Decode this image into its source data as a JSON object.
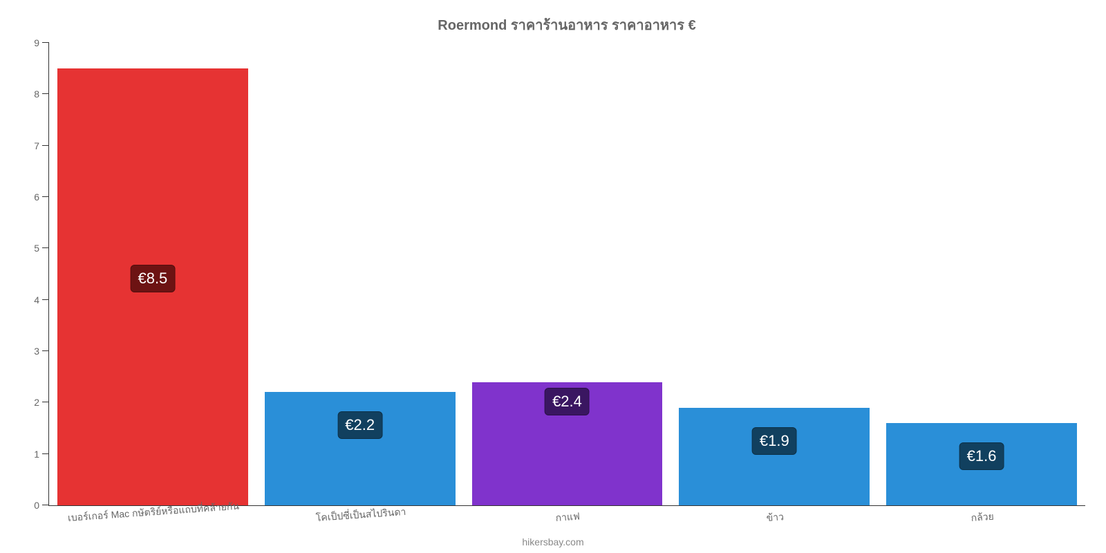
{
  "chart": {
    "type": "bar",
    "title": "Roermond ราคาร้านอาหาร ราคาอาหาร €",
    "title_fontsize": 20,
    "title_color": "#666666",
    "background_color": "#ffffff",
    "ylim": [
      0,
      9
    ],
    "yticks": [
      0,
      1,
      2,
      3,
      4,
      5,
      6,
      7,
      8,
      9
    ],
    "ytick_fontsize": 14,
    "ytick_color": "#666666",
    "xlabel_fontsize": 14,
    "xlabel_color": "#666666",
    "xlabel_rotation_deg": -4,
    "bar_width_pct": 92,
    "value_label_fontsize": 22,
    "value_label_text_color": "#ffffff",
    "categories": [
      "เบอร์เกอร์ Mac กษัตริย์หรือแถบที่คล้ายกัน",
      "โคเป็ปซี่เป็นสไปรินดา",
      "กาแฟ",
      "ข้าว",
      "กล้วย"
    ],
    "values": [
      8.5,
      2.2,
      2.4,
      1.9,
      1.6
    ],
    "value_labels": [
      "€8.5",
      "€2.2",
      "€2.4",
      "€1.9",
      "€1.6"
    ],
    "bar_colors": [
      "#e63333",
      "#2a8fd8",
      "#8033cc",
      "#2a8fd8",
      "#2a8fd8"
    ],
    "value_label_bg_colors": [
      "#6d1313",
      "#11405f",
      "#3a1661",
      "#11405f",
      "#11405f"
    ],
    "value_label_offsets": [
      -50,
      26,
      -42,
      26,
      26
    ],
    "credit": "hikersbay.com",
    "credit_fontsize": 14,
    "credit_color": "#888888",
    "axis_color": "#333333"
  }
}
